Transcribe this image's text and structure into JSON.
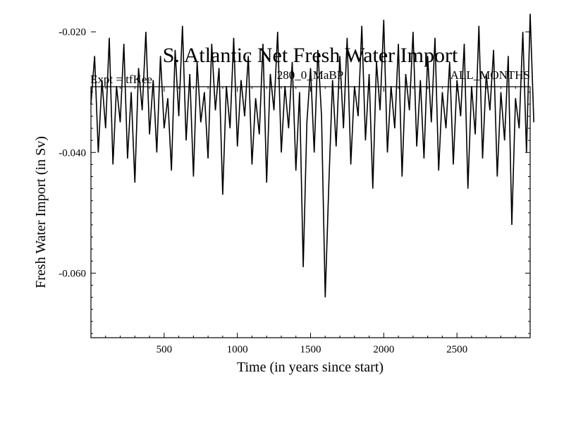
{
  "chart_data": {
    "type": "line",
    "title": "S. Atlantic Net Fresh Water Import",
    "subtitle_left": "Expt = tfKee",
    "subtitle_center": "280_0_MaBP",
    "subtitle_right": "ALL_MONTHS",
    "xlabel": "Time (in years since start)",
    "ylabel": "Fresh Water Import (in Sv)",
    "xlim": [
      0,
      3000
    ],
    "ylim": [
      -0.0707,
      -0.0291
    ],
    "xticks": [
      500,
      1000,
      1500,
      2000,
      2500
    ],
    "xtick_labels": [
      "500",
      "1000",
      "1500",
      "2000",
      "2500"
    ],
    "yticks": [
      -0.02,
      -0.04,
      -0.06
    ],
    "ytick_labels": [
      "-0.020",
      "-0.040",
      "-0.060"
    ],
    "grid": false,
    "series": [
      {
        "color": "#000000",
        "x_start": 0,
        "x_step": 25,
        "y": [
          -0.032,
          -0.024,
          -0.04,
          -0.028,
          -0.036,
          -0.021,
          -0.042,
          -0.029,
          -0.035,
          -0.022,
          -0.041,
          -0.03,
          -0.045,
          -0.026,
          -0.033,
          -0.02,
          -0.037,
          -0.028,
          -0.04,
          -0.024,
          -0.036,
          -0.031,
          -0.043,
          -0.023,
          -0.034,
          -0.019,
          -0.038,
          -0.027,
          -0.044,
          -0.025,
          -0.035,
          -0.03,
          -0.041,
          -0.022,
          -0.033,
          -0.026,
          -0.047,
          -0.029,
          -0.036,
          -0.021,
          -0.039,
          -0.028,
          -0.034,
          -0.024,
          -0.042,
          -0.031,
          -0.037,
          -0.022,
          -0.045,
          -0.027,
          -0.033,
          -0.02,
          -0.04,
          -0.029,
          -0.036,
          -0.025,
          -0.043,
          -0.03,
          -0.059,
          -0.035,
          -0.026,
          -0.04,
          -0.023,
          -0.034,
          -0.064,
          -0.045,
          -0.028,
          -0.039,
          -0.024,
          -0.036,
          -0.021,
          -0.042,
          -0.029,
          -0.034,
          -0.019,
          -0.038,
          -0.027,
          -0.046,
          -0.025,
          -0.033,
          -0.018,
          -0.04,
          -0.029,
          -0.036,
          -0.022,
          -0.044,
          -0.027,
          -0.033,
          -0.02,
          -0.039,
          -0.028,
          -0.041,
          -0.024,
          -0.035,
          -0.021,
          -0.043,
          -0.03,
          -0.036,
          -0.025,
          -0.042,
          -0.028,
          -0.034,
          -0.022,
          -0.046,
          -0.029,
          -0.037,
          -0.019,
          -0.041,
          -0.027,
          -0.033,
          -0.023,
          -0.044,
          -0.03,
          -0.038,
          -0.024,
          -0.052,
          -0.031,
          -0.036,
          -0.02,
          -0.04,
          -0.017,
          -0.035
        ]
      }
    ]
  }
}
